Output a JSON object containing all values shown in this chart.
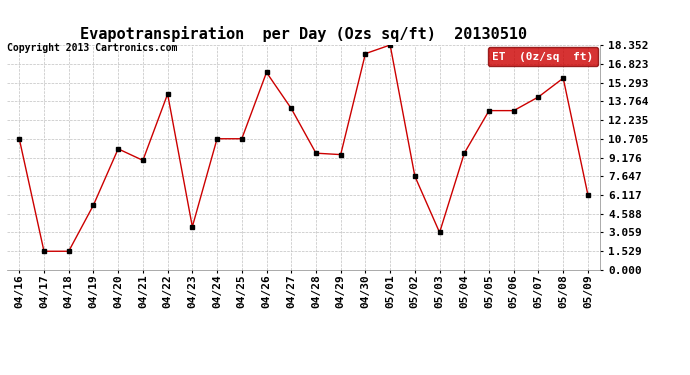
{
  "title": "Evapotranspiration  per Day (Ozs sq/ft)  20130510",
  "copyright": "Copyright 2013 Cartronics.com",
  "legend_label": "ET  (0z/sq  ft)",
  "x_labels": [
    "04/16",
    "04/17",
    "04/18",
    "04/19",
    "04/20",
    "04/21",
    "04/22",
    "04/23",
    "04/24",
    "04/25",
    "04/26",
    "04/27",
    "04/28",
    "04/29",
    "04/30",
    "05/01",
    "05/02",
    "05/03",
    "05/04",
    "05/05",
    "05/06",
    "05/07",
    "05/08",
    "05/09"
  ],
  "y_values": [
    10.705,
    1.529,
    1.529,
    5.294,
    9.882,
    8.941,
    14.353,
    3.529,
    10.705,
    10.705,
    16.118,
    13.176,
    9.529,
    9.412,
    17.647,
    18.352,
    7.647,
    3.059,
    9.529,
    13.0,
    13.0,
    14.118,
    15.647,
    6.117
  ],
  "y_ticks": [
    0.0,
    1.529,
    3.059,
    4.588,
    6.117,
    7.647,
    9.176,
    10.705,
    12.235,
    13.764,
    15.293,
    16.823,
    18.352
  ],
  "line_color": "#cc0000",
  "marker_color": "#000000",
  "legend_bg": "#cc0000",
  "legend_text_color": "#ffffff",
  "background_color": "#ffffff",
  "grid_color": "#c0c0c0",
  "title_fontsize": 11,
  "copyright_fontsize": 7,
  "tick_fontsize": 8,
  "legend_fontsize": 8,
  "ylim": [
    0.0,
    18.352
  ]
}
